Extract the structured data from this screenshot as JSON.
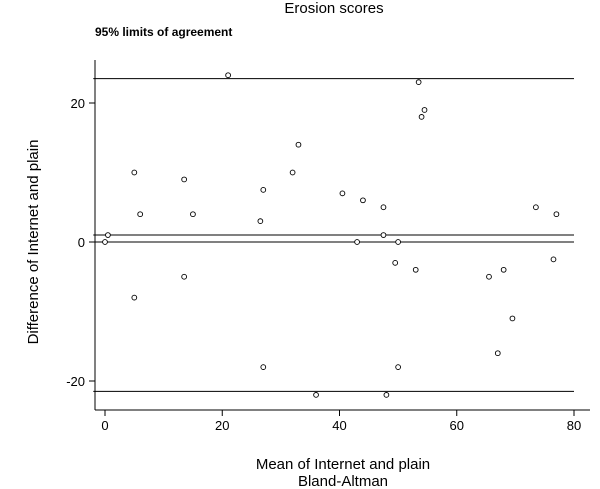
{
  "chart_data": {
    "type": "scatter",
    "title": "Erosion scores",
    "subtitle": "95% limits of agreement",
    "xlabel": "Mean of Internet and plain",
    "xlabel_line2": "Bland-Altman",
    "ylabel": "Difference of Internet and plain",
    "xlim": [
      -2,
      81
    ],
    "ylim": [
      -24,
      26
    ],
    "x_ticks": [
      0,
      20,
      40,
      60,
      80
    ],
    "y_ticks": [
      -20,
      0,
      20
    ],
    "grid": false,
    "reference_lines": {
      "upper_limit": 23.5,
      "mean_difference": 1,
      "lower_limit": -21.5,
      "zero": 0
    },
    "points": [
      {
        "x": 0,
        "y": 0
      },
      {
        "x": 0.5,
        "y": 1
      },
      {
        "x": 5,
        "y": 10
      },
      {
        "x": 5,
        "y": -8
      },
      {
        "x": 6,
        "y": 4
      },
      {
        "x": 13.5,
        "y": 9
      },
      {
        "x": 13.5,
        "y": -5
      },
      {
        "x": 15,
        "y": 4
      },
      {
        "x": 21,
        "y": 24
      },
      {
        "x": 26.5,
        "y": 3
      },
      {
        "x": 27,
        "y": 7.5
      },
      {
        "x": 27,
        "y": -18
      },
      {
        "x": 32,
        "y": 10
      },
      {
        "x": 33,
        "y": 14
      },
      {
        "x": 36,
        "y": -22
      },
      {
        "x": 40.5,
        "y": 7
      },
      {
        "x": 43,
        "y": 0
      },
      {
        "x": 44,
        "y": 6
      },
      {
        "x": 47.5,
        "y": 5
      },
      {
        "x": 47.5,
        "y": 1
      },
      {
        "x": 48,
        "y": -22
      },
      {
        "x": 49.5,
        "y": -3
      },
      {
        "x": 50,
        "y": 0
      },
      {
        "x": 50,
        "y": -18
      },
      {
        "x": 53,
        "y": -4
      },
      {
        "x": 53.5,
        "y": 23
      },
      {
        "x": 54,
        "y": 18
      },
      {
        "x": 54.5,
        "y": 19
      },
      {
        "x": 65.5,
        "y": -5
      },
      {
        "x": 67,
        "y": -16
      },
      {
        "x": 68,
        "y": -4
      },
      {
        "x": 69.5,
        "y": -11
      },
      {
        "x": 73.5,
        "y": 5
      },
      {
        "x": 76.5,
        "y": -2.5
      },
      {
        "x": 77,
        "y": 4
      }
    ]
  }
}
